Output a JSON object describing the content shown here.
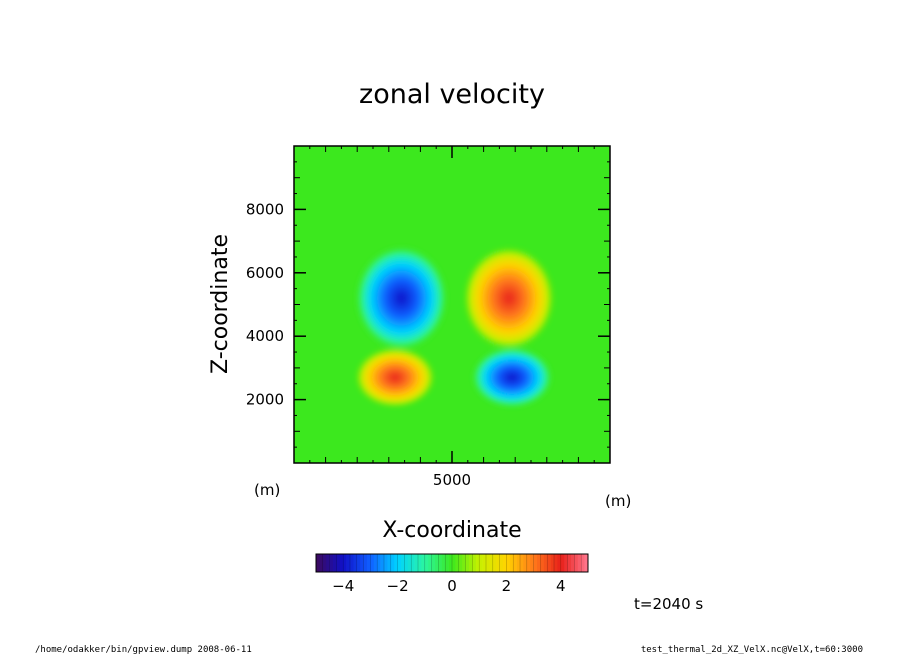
{
  "chart_data": {
    "type": "heatmap",
    "title": "zonal velocity",
    "xlabel": "X-coordinate",
    "ylabel": "Z-coordinate",
    "x_unit": "(m)",
    "y_unit": "(m)",
    "xlim": [
      0,
      10000
    ],
    "ylim": [
      0,
      10000
    ],
    "x_ticks": [
      {
        "value": 5000,
        "label": "5000"
      }
    ],
    "y_ticks": [
      {
        "value": 2000,
        "label": "2000"
      },
      {
        "value": 4000,
        "label": "4000"
      },
      {
        "value": 6000,
        "label": "6000"
      },
      {
        "value": 8000,
        "label": "8000"
      }
    ],
    "features": [
      {
        "x": 3400,
        "z": 5200,
        "value": -4.3
      },
      {
        "x": 6800,
        "z": 5200,
        "value": 4.3
      },
      {
        "x": 3200,
        "z": 2700,
        "value": 4.5
      },
      {
        "x": 6900,
        "z": 2700,
        "value": -4.5
      }
    ],
    "colorbar": {
      "range": [
        -5,
        5
      ],
      "tick_values": [
        -4,
        -2,
        0,
        2,
        4
      ],
      "tick_labels": [
        "−4",
        "−2",
        "0",
        "2",
        "4"
      ],
      "colormap": [
        "#3d0a5c",
        "#1010c8",
        "#1060ff",
        "#00d2ff",
        "#2bf5a0",
        "#3ce81e",
        "#c8f000",
        "#ffd400",
        "#ff7a1a",
        "#e8201a",
        "#ff7890"
      ]
    },
    "time_label": "t=2040 s"
  },
  "footer": {
    "left": "/home/odakker/bin/gpview.dump  2008-06-11",
    "right": "test_thermal_2d_XZ_VelX.nc@VelX,t=60:3000"
  }
}
